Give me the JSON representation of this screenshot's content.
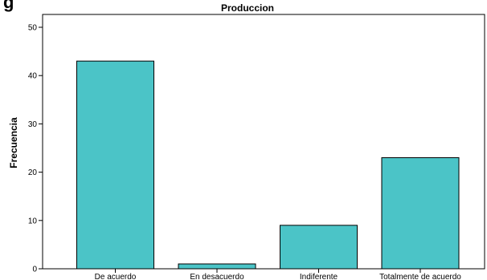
{
  "corner_mark": "g",
  "chart_data": {
    "type": "bar",
    "title": "Produccion",
    "xlabel": "",
    "ylabel": "Frecuencia",
    "categories": [
      "De acuerdo",
      "En desacuerdo",
      "Indiferente",
      "Totalmente de acuerdo"
    ],
    "values": [
      43,
      1,
      9,
      23
    ],
    "ylim": [
      0,
      52
    ],
    "yticks": [
      0,
      10,
      20,
      30,
      40,
      50
    ],
    "grid": false,
    "bar_color": "#4bc4c7",
    "bar_edge_color": "#000000"
  }
}
